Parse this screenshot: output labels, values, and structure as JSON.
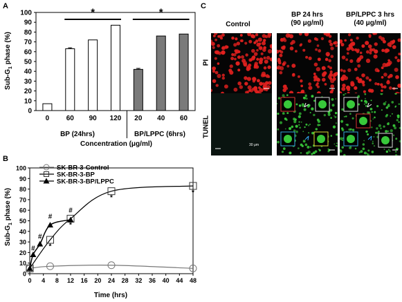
{
  "panels": {
    "a": "A",
    "b": "B",
    "c": "C"
  },
  "chart_data": [
    {
      "type": "bar",
      "ylabel_main": "Sub-G",
      "ylabel_sub": "1",
      "ylabel_rest": " phase (%)",
      "ylim": [
        0,
        100
      ],
      "yticks": [
        0,
        10,
        20,
        30,
        40,
        50,
        60,
        70,
        80,
        90,
        100
      ],
      "categories": [
        "0",
        "60",
        "90",
        "120",
        "20",
        "40",
        "60"
      ],
      "values": [
        7,
        63,
        72,
        87,
        42,
        76,
        78
      ],
      "errors": [
        0,
        1,
        0,
        0,
        1,
        0,
        0
      ],
      "fills": [
        "white",
        "white",
        "white",
        "white",
        "gray",
        "gray",
        "gray"
      ],
      "group_labels": [
        "BP (24hrs)",
        "BP/LPPC (6hrs)"
      ],
      "xlabel": "Concentration (μg/ml)",
      "significance_marks": [
        "*",
        "*"
      ],
      "colors": {
        "white_bar": "#ffffff",
        "gray_bar": "#7a7a7a"
      }
    },
    {
      "type": "line",
      "ylabel_main": "Sub-G",
      "ylabel_sub": "1",
      "ylabel_rest": " phase (%)",
      "xlabel": "Time (hrs)",
      "ylim": [
        0,
        100
      ],
      "xlim": [
        0,
        48
      ],
      "yticks": [
        0,
        10,
        20,
        30,
        40,
        50,
        60,
        70,
        80,
        90,
        100
      ],
      "xticks": [
        0,
        4,
        8,
        12,
        16,
        20,
        24,
        28,
        32,
        36,
        40,
        44,
        48
      ],
      "legend_position": "top-left",
      "series": [
        {
          "name": "SK-BR-3-Control",
          "marker": "circle",
          "x": [
            0,
            6,
            24,
            48
          ],
          "y": [
            5,
            7,
            8,
            5
          ]
        },
        {
          "name": "SK-BR-3-BP",
          "marker": "square",
          "x": [
            0,
            6,
            12,
            24,
            48
          ],
          "y": [
            5,
            32,
            52,
            78,
            83
          ]
        },
        {
          "name": "SK-BR-3-BP/LPPC",
          "marker": "triangle",
          "x": [
            0,
            1,
            3,
            6,
            12
          ],
          "y": [
            5,
            18,
            28,
            46,
            51
          ]
        }
      ],
      "annotations": [
        {
          "text": "#",
          "x": 1,
          "y": 22
        },
        {
          "text": "#",
          "x": 3,
          "y": 33
        },
        {
          "text": "#",
          "x": 6,
          "y": 52
        },
        {
          "text": "#",
          "x": 12,
          "y": 58
        },
        {
          "text": "*",
          "x": 6,
          "y": 24
        },
        {
          "text": "*",
          "x": 12,
          "y": 44
        },
        {
          "text": "*",
          "x": 24,
          "y": 70
        },
        {
          "text": "*",
          "x": 48,
          "y": 75
        }
      ]
    }
  ],
  "micrographs": {
    "columns": [
      "Control",
      "BP  24 hrs\n(90 μg/ml)",
      "BP/LPPC  3 hrs\n(40 μg/ml)"
    ],
    "rows": [
      "PI",
      "TUNEL"
    ],
    "scale_label": "30 μm",
    "colors": {
      "pi": "#e0201e",
      "tunel": "#38c83a",
      "background": "#050505"
    }
  }
}
